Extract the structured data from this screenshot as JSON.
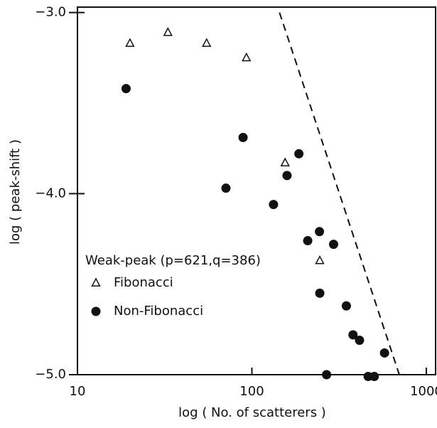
{
  "chart_data": {
    "type": "scatter",
    "x_label": "log ( No. of scatterers )",
    "y_label": "log ( peak-shift )",
    "xscale": "log",
    "xlim": [
      10,
      1130
    ],
    "ylim": [
      -5,
      -2.97
    ],
    "xticks": [
      10,
      100,
      1000
    ],
    "yticks": [
      {
        "value": -3,
        "label": "−3.0"
      },
      {
        "value": -4,
        "label": "−4.0"
      },
      {
        "value": -5,
        "label": "−5.0"
      }
    ],
    "legend_title": "Weak-peak (p=621,q=386)",
    "series": [
      {
        "name": "Fibonacci",
        "marker": "triangle",
        "color": "#111111",
        "x": [
          20,
          33,
          55,
          93,
          155,
          245
        ],
        "values": [
          -3.17,
          -3.11,
          -3.17,
          -3.25,
          -3.83,
          -4.37
        ]
      },
      {
        "name": "Non-Fibonacci",
        "marker": "circle",
        "color": "#111111",
        "x": [
          19,
          89,
          71,
          186,
          159,
          133,
          244,
          209,
          294,
          245,
          348,
          380,
          414,
          576,
          268,
          464,
          503
        ],
        "values": [
          -3.42,
          -3.69,
          -3.97,
          -3.78,
          -3.9,
          -4.06,
          -4.21,
          -4.26,
          -4.28,
          -4.55,
          -4.62,
          -4.78,
          -4.81,
          -4.88,
          -5.0,
          -5.01,
          -5.01
        ]
      },
      {
        "marker": "dashed-line",
        "color": "#111111",
        "x": [
          144,
          700
        ],
        "values": [
          -3.0,
          -5.0
        ]
      }
    ]
  }
}
